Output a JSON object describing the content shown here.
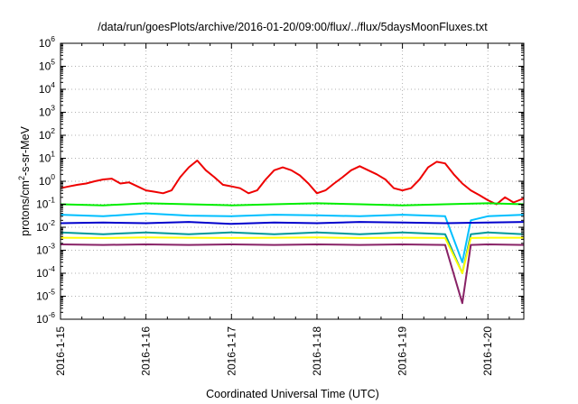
{
  "chart_data": {
    "type": "line",
    "title": "/data/run/goesPlots/archive/2016-01-20/09:00/flux/../flux/5daysMoonFluxes.txt",
    "xlabel": "Coordinated Universal Time (UTC)",
    "ylabel": {
      "base": "protons/cm",
      "sup": "2",
      "rest": "-s-sr-MeV"
    },
    "yscale": "log",
    "ylim": [
      1e-06,
      1000000.0
    ],
    "xlim": [
      0,
      5.42
    ],
    "grid": true,
    "legend": "none",
    "x_ticks": [
      {
        "value": 0,
        "label": "2016-1-15"
      },
      {
        "value": 1,
        "label": "2016-1-16"
      },
      {
        "value": 2,
        "label": "2016-1-17"
      },
      {
        "value": 3,
        "label": "2016-1-18"
      },
      {
        "value": 4,
        "label": "2016-1-19"
      },
      {
        "value": 5,
        "label": "2016-1-20"
      }
    ],
    "y_ticks": [
      {
        "value": -6,
        "base": "10",
        "exp": "-6"
      },
      {
        "value": -5,
        "base": "10",
        "exp": "-5"
      },
      {
        "value": -4,
        "base": "10",
        "exp": "-4"
      },
      {
        "value": -3,
        "base": "10",
        "exp": "-3"
      },
      {
        "value": -2,
        "base": "10",
        "exp": "-2"
      },
      {
        "value": -1,
        "base": "10",
        "exp": "-1"
      },
      {
        "value": 0,
        "base": "10",
        "exp": "0"
      },
      {
        "value": 1,
        "base": "10",
        "exp": "1"
      },
      {
        "value": 2,
        "base": "10",
        "exp": "2"
      },
      {
        "value": 3,
        "base": "10",
        "exp": "3"
      },
      {
        "value": 4,
        "base": "10",
        "exp": "4"
      },
      {
        "value": 5,
        "base": "10",
        "exp": "5"
      },
      {
        "value": 6,
        "base": "10",
        "exp": "6"
      }
    ],
    "series": [
      {
        "color": "#ee0000",
        "width": 2,
        "x": [
          0.0,
          0.1,
          0.2,
          0.3,
          0.4,
          0.5,
          0.6,
          0.7,
          0.8,
          0.9,
          1.0,
          1.1,
          1.2,
          1.3,
          1.4,
          1.5,
          1.6,
          1.7,
          1.8,
          1.9,
          2.0,
          2.1,
          2.2,
          2.3,
          2.4,
          2.5,
          2.6,
          2.7,
          2.8,
          2.9,
          3.0,
          3.1,
          3.2,
          3.3,
          3.4,
          3.5,
          3.6,
          3.7,
          3.8,
          3.9,
          4.0,
          4.1,
          4.2,
          4.3,
          4.4,
          4.5,
          4.6,
          4.7,
          4.8,
          4.9,
          5.0,
          5.1,
          5.2,
          5.3,
          5.42
        ],
        "y": [
          0.5,
          0.6,
          0.7,
          0.8,
          1.0,
          1.2,
          1.3,
          0.8,
          0.9,
          0.6,
          0.4,
          0.35,
          0.3,
          0.4,
          1.5,
          4,
          8,
          3,
          1.5,
          0.7,
          0.6,
          0.5,
          0.3,
          0.4,
          1.2,
          3,
          4,
          3,
          1.8,
          0.8,
          0.3,
          0.4,
          0.8,
          1.5,
          3,
          4.5,
          3,
          2,
          1.2,
          0.5,
          0.4,
          0.5,
          1.2,
          4,
          7,
          6,
          2,
          0.8,
          0.4,
          0.25,
          0.15,
          0.1,
          0.2,
          0.12,
          0.18
        ]
      },
      {
        "color": "#00ee00",
        "width": 2,
        "x": [
          0.0,
          0.5,
          1.0,
          1.5,
          2.0,
          2.5,
          3.0,
          3.5,
          4.0,
          4.5,
          5.0,
          5.42
        ],
        "y": [
          0.1,
          0.09,
          0.11,
          0.1,
          0.09,
          0.1,
          0.11,
          0.1,
          0.09,
          0.1,
          0.11,
          0.1
        ]
      },
      {
        "color": "#00bfff",
        "width": 2,
        "x": [
          0.0,
          0.5,
          1.0,
          1.5,
          2.0,
          2.5,
          3.0,
          3.5,
          4.0,
          4.5,
          4.7,
          4.8,
          5.0,
          5.42
        ],
        "y": [
          0.035,
          0.03,
          0.04,
          0.032,
          0.03,
          0.035,
          0.033,
          0.03,
          0.035,
          0.03,
          0.0003,
          0.02,
          0.03,
          0.035
        ]
      },
      {
        "color": "#0000cc",
        "width": 2,
        "x": [
          0.0,
          0.5,
          1.0,
          1.5,
          2.0,
          2.5,
          3.0,
          3.5,
          4.0,
          4.5,
          5.0,
          5.42
        ],
        "y": [
          0.015,
          0.016,
          0.015,
          0.017,
          0.014,
          0.016,
          0.015,
          0.017,
          0.016,
          0.015,
          0.016,
          0.017
        ]
      },
      {
        "color": "#009999",
        "width": 2,
        "x": [
          0.0,
          0.5,
          1.0,
          1.5,
          2.0,
          2.5,
          3.0,
          3.5,
          4.0,
          4.5,
          4.7,
          4.8,
          5.0,
          5.42
        ],
        "y": [
          0.006,
          0.005,
          0.006,
          0.005,
          0.006,
          0.005,
          0.006,
          0.005,
          0.006,
          0.005,
          0.0001,
          0.005,
          0.006,
          0.005
        ]
      },
      {
        "color": "#ffff00",
        "width": 2,
        "x": [
          0.0,
          0.5,
          1.0,
          1.5,
          2.0,
          2.5,
          3.0,
          3.5,
          4.0,
          4.5,
          4.7,
          4.8,
          5.0,
          5.42
        ],
        "y": [
          0.0035,
          0.0034,
          0.0036,
          0.0035,
          0.0034,
          0.0035,
          0.0036,
          0.0034,
          0.0035,
          0.0034,
          0.0001,
          0.0034,
          0.0035,
          0.0035
        ]
      },
      {
        "color": "#882266",
        "width": 2,
        "x": [
          0.0,
          0.5,
          1.0,
          1.5,
          2.0,
          2.5,
          3.0,
          3.5,
          4.0,
          4.5,
          4.7,
          4.8,
          5.0,
          5.42
        ],
        "y": [
          0.0018,
          0.0017,
          0.0018,
          0.0017,
          0.0018,
          0.0017,
          0.0018,
          0.0017,
          0.0018,
          0.0017,
          5e-06,
          0.0017,
          0.0018,
          0.0017
        ]
      }
    ]
  }
}
